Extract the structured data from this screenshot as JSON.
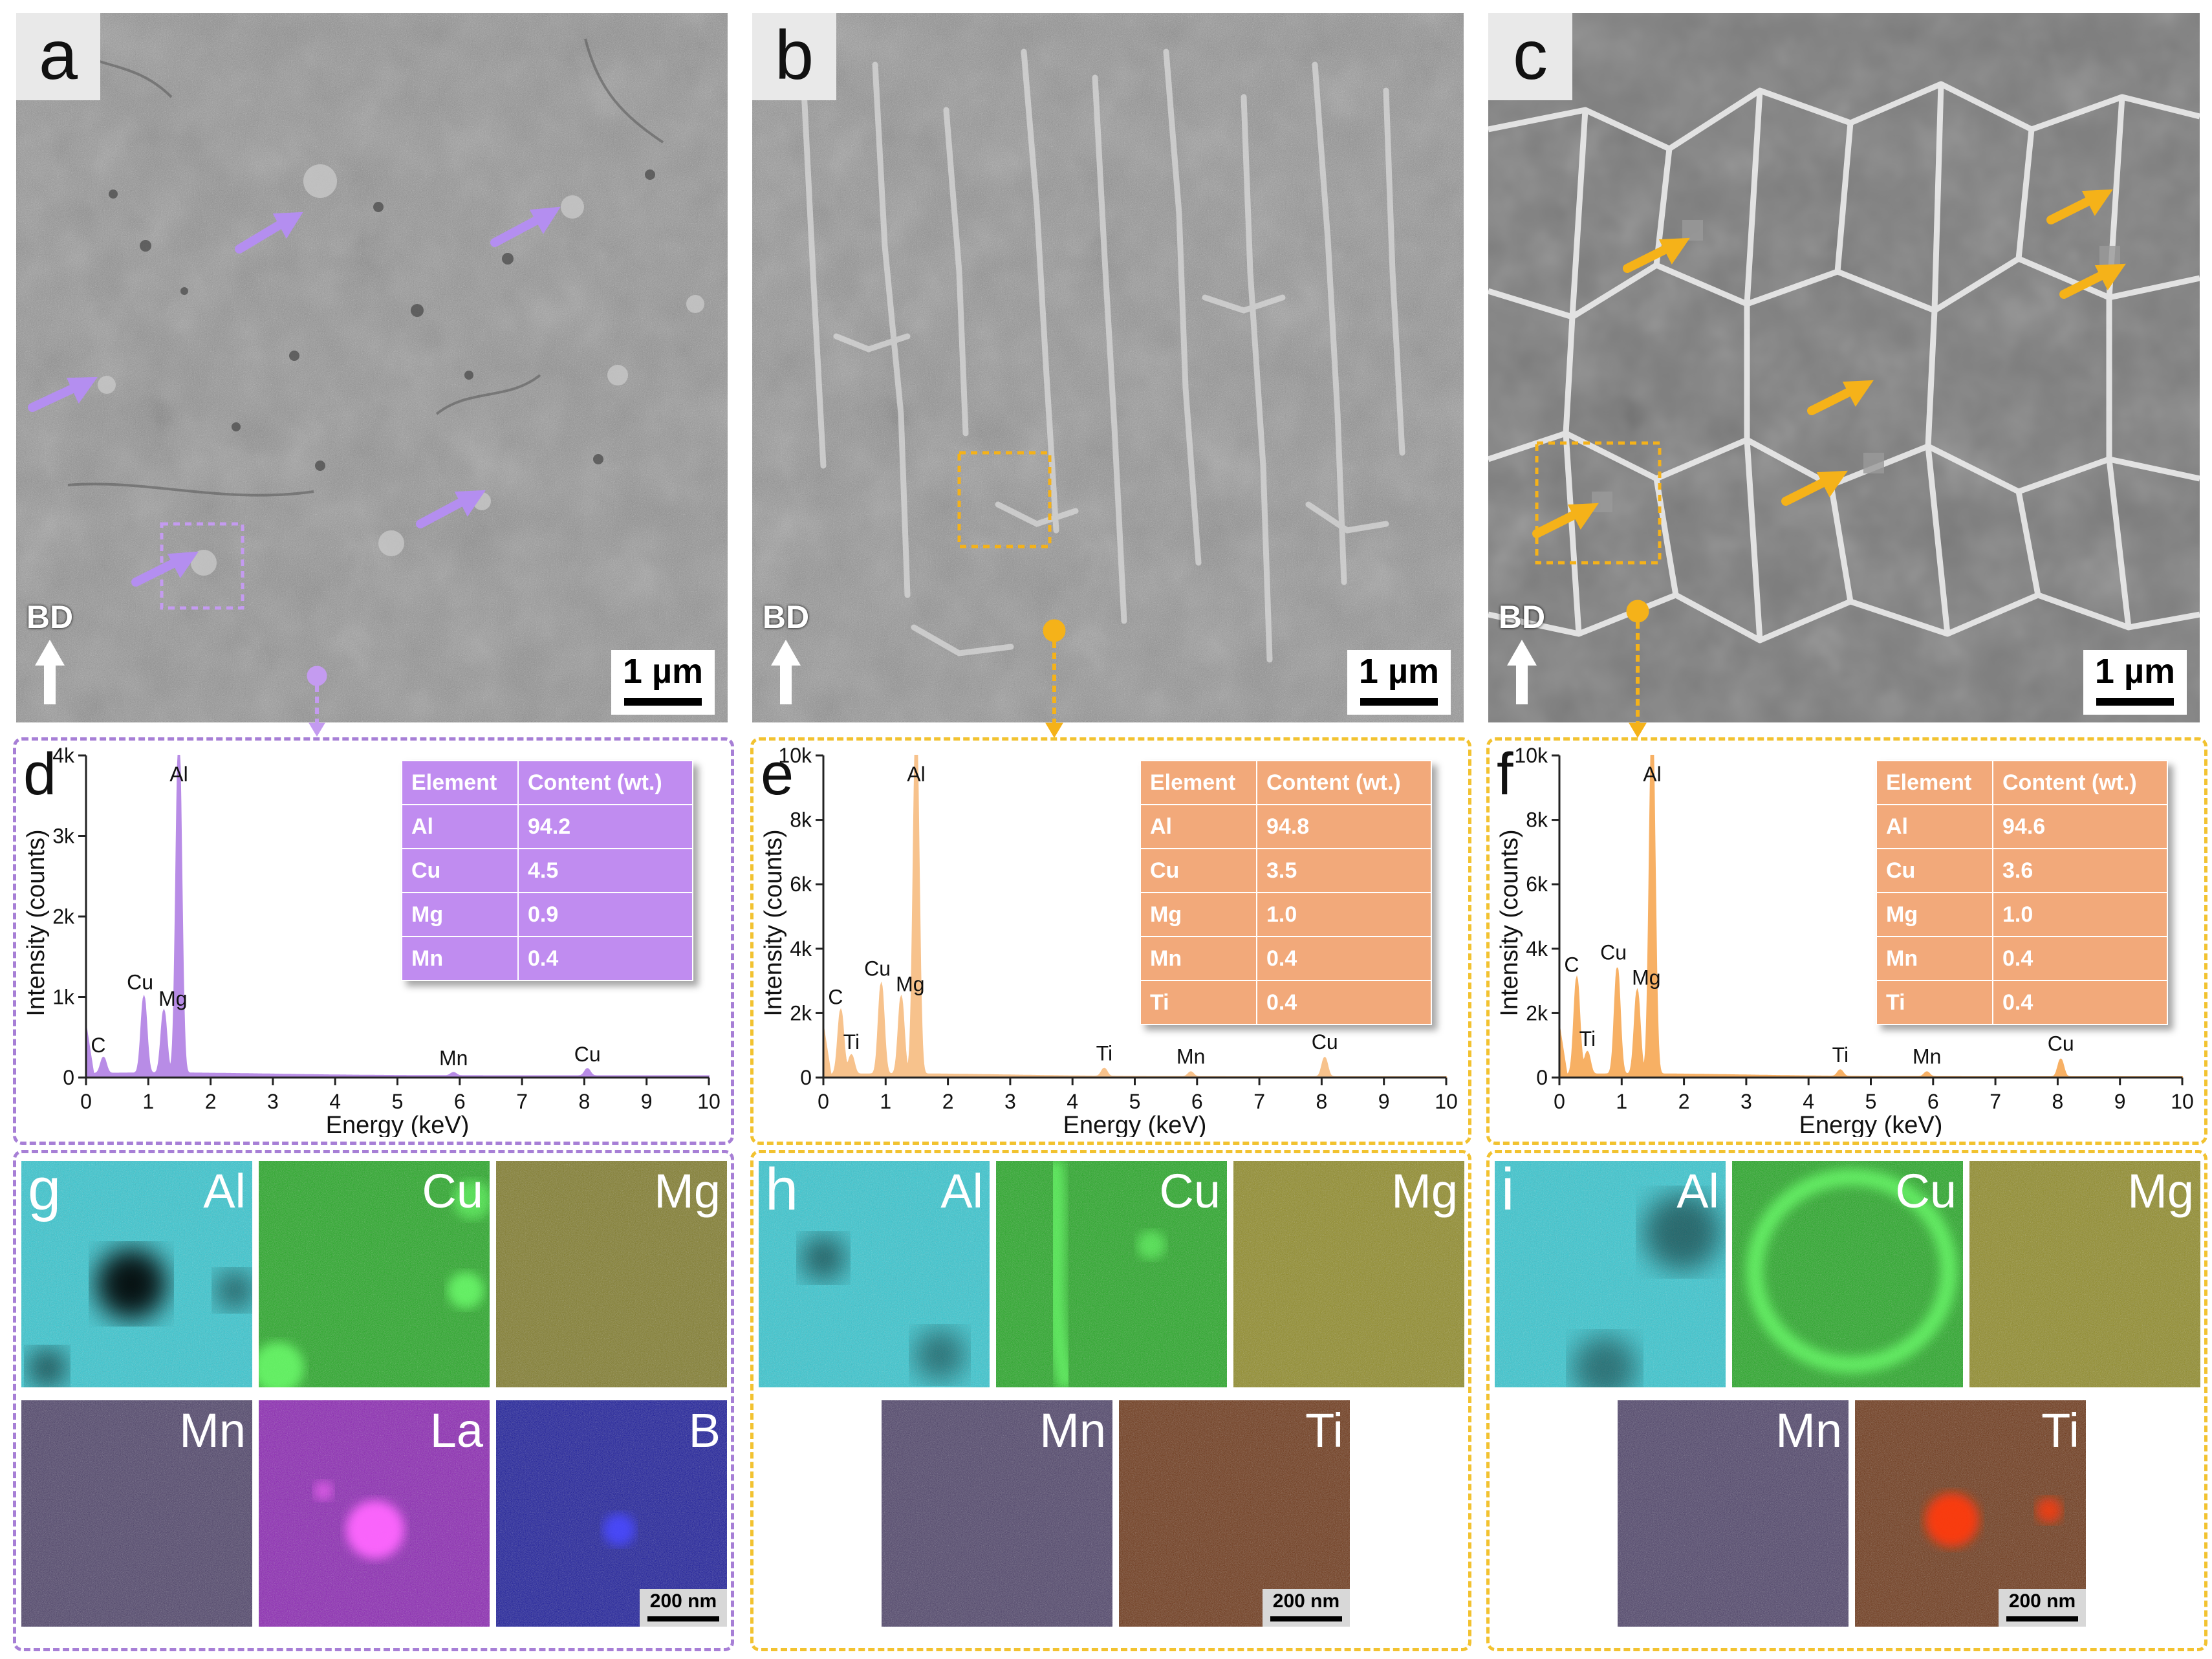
{
  "panels_sem": [
    {
      "letter": "a",
      "bd": "BD",
      "scale": "1 µm",
      "accent": "#c49bf0"
    },
    {
      "letter": "b",
      "bd": "BD",
      "scale": "1 µm",
      "accent": "#f5b219"
    },
    {
      "letter": "c",
      "bd": "BD",
      "scale": "1 µm",
      "accent": "#f5b219"
    }
  ],
  "eds": [
    {
      "letter": "d",
      "color": "#b88ce6",
      "table_color": "#c08cf0",
      "table_header": [
        "Element",
        "Content (wt.)"
      ],
      "table_rows": [
        [
          "Al",
          "94.2"
        ],
        [
          "Cu",
          "4.5"
        ],
        [
          "Mg",
          "0.9"
        ],
        [
          "Mn",
          "0.4"
        ]
      ],
      "peaks": [
        {
          "label": "C",
          "energy": 0.28,
          "counts": 200
        },
        {
          "label": "Cu",
          "energy": 0.93,
          "counts": 950
        },
        {
          "label": "Mg",
          "energy": 1.25,
          "counts": 780
        },
        {
          "label": "Al",
          "energy": 1.49,
          "counts": 4200
        },
        {
          "label": "Mn",
          "energy": 5.9,
          "counts": 40
        },
        {
          "label": "Cu",
          "energy": 8.05,
          "counts": 90
        }
      ]
    },
    {
      "letter": "e",
      "color": "#f7c28c",
      "table_color": "#f2a97a",
      "table_header": [
        "Element",
        "Content (wt.)"
      ],
      "table_rows": [
        [
          "Al",
          "94.8"
        ],
        [
          "Cu",
          "3.5"
        ],
        [
          "Mg",
          "1.0"
        ],
        [
          "Mn",
          "0.4"
        ],
        [
          "Ti",
          "0.4"
        ]
      ],
      "peaks": [
        {
          "label": "C",
          "energy": 0.28,
          "counts": 2000
        },
        {
          "label": "Ti",
          "energy": 0.45,
          "counts": 600
        },
        {
          "label": "Cu",
          "energy": 0.93,
          "counts": 2800
        },
        {
          "label": "Mg",
          "energy": 1.25,
          "counts": 2400
        },
        {
          "label": "Al",
          "energy": 1.49,
          "counts": 11000
        },
        {
          "label": "Ti",
          "energy": 4.51,
          "counts": 250
        },
        {
          "label": "Mn",
          "energy": 5.9,
          "counts": 150
        },
        {
          "label": "Cu",
          "energy": 8.05,
          "counts": 600
        }
      ]
    },
    {
      "letter": "f",
      "color": "#f7b064",
      "table_color": "#f2a97a",
      "table_header": [
        "Element",
        "Content (wt.)"
      ],
      "table_rows": [
        [
          "Al",
          "94.6"
        ],
        [
          "Cu",
          "3.6"
        ],
        [
          "Mg",
          "1.0"
        ],
        [
          "Mn",
          "0.4"
        ],
        [
          "Ti",
          "0.4"
        ]
      ],
      "peaks": [
        {
          "label": "C",
          "energy": 0.28,
          "counts": 3000
        },
        {
          "label": "Ti",
          "energy": 0.45,
          "counts": 700
        },
        {
          "label": "Cu",
          "energy": 0.93,
          "counts": 3300
        },
        {
          "label": "Mg",
          "energy": 1.25,
          "counts": 2600
        },
        {
          "label": "Al",
          "energy": 1.49,
          "counts": 11000
        },
        {
          "label": "Ti",
          "energy": 4.51,
          "counts": 200
        },
        {
          "label": "Mn",
          "energy": 5.9,
          "counts": 150
        },
        {
          "label": "Cu",
          "energy": 8.05,
          "counts": 550
        }
      ]
    }
  ],
  "eds_axes": {
    "xlabel": "Energy (keV)",
    "ylabel": "Intensity (counts)",
    "xticks": [
      "0",
      "1",
      "2",
      "3",
      "4",
      "5",
      "6",
      "7",
      "8",
      "9",
      "10"
    ],
    "d_yticks": [
      "0",
      "1k",
      "2k",
      "3k",
      "4k"
    ],
    "ef_yticks": [
      "0",
      "2k",
      "4k",
      "6k",
      "8k",
      "10k"
    ]
  },
  "maps": {
    "g": {
      "letter": "g",
      "items": [
        {
          "el": "Al",
          "color": "#2fc8d2"
        },
        {
          "el": "Cu",
          "color": "#1fa81f"
        },
        {
          "el": "Mg",
          "color": "#7f7a26"
        },
        {
          "el": "Mn",
          "color": "#4a3e66"
        },
        {
          "el": "La",
          "color": "#8a1fb4"
        },
        {
          "el": "B",
          "color": "#16169a"
        }
      ],
      "scale": "200 nm"
    },
    "h": {
      "letter": "h",
      "items": [
        {
          "el": "Al",
          "color": "#2fc8d2"
        },
        {
          "el": "Cu",
          "color": "#1fa81f"
        },
        {
          "el": "Mg",
          "color": "#8f8a22"
        },
        {
          "el": "Mn",
          "color": "#4a3e66"
        },
        {
          "el": "Ti",
          "color": "#6b3212"
        }
      ],
      "scale": "200 nm"
    },
    "i": {
      "letter": "i",
      "items": [
        {
          "el": "Al",
          "color": "#2fc8d2"
        },
        {
          "el": "Cu",
          "color": "#1fa81f"
        },
        {
          "el": "Mg",
          "color": "#8f8a22"
        },
        {
          "el": "Mn",
          "color": "#4a3e66"
        },
        {
          "el": "Ti",
          "color": "#6b3212"
        }
      ],
      "scale": "200 nm"
    }
  }
}
